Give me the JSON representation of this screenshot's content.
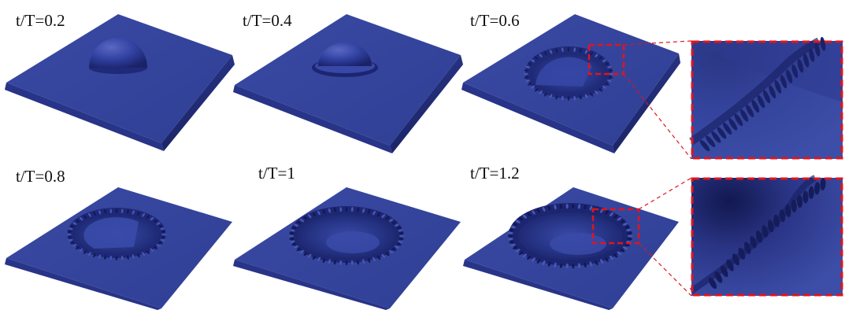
{
  "figure": {
    "frames": [
      {
        "label": "t/T=0.2",
        "time_ratio": 0.2,
        "stage": "droplet"
      },
      {
        "label": "t/T=0.4",
        "time_ratio": 0.4,
        "stage": "droplet-spreading"
      },
      {
        "label": "t/T=0.6",
        "time_ratio": 0.6,
        "stage": "crater-with-crown",
        "has_zoom": true
      },
      {
        "label": "t/T=0.8",
        "time_ratio": 0.8,
        "stage": "crater-fingers"
      },
      {
        "label": "t/T=1",
        "time_ratio": 1.0,
        "stage": "crater-fingers"
      },
      {
        "label": "t/T=1.2",
        "time_ratio": 1.2,
        "stage": "crater-breakup",
        "has_zoom": true
      }
    ],
    "colors": {
      "surface": "#34449a",
      "surface_dark": "#1d2470",
      "surface_light": "#4a58b2",
      "highlight": "#5c6bc4",
      "zoom_box": "#e0141e",
      "background": "#ffffff"
    }
  }
}
